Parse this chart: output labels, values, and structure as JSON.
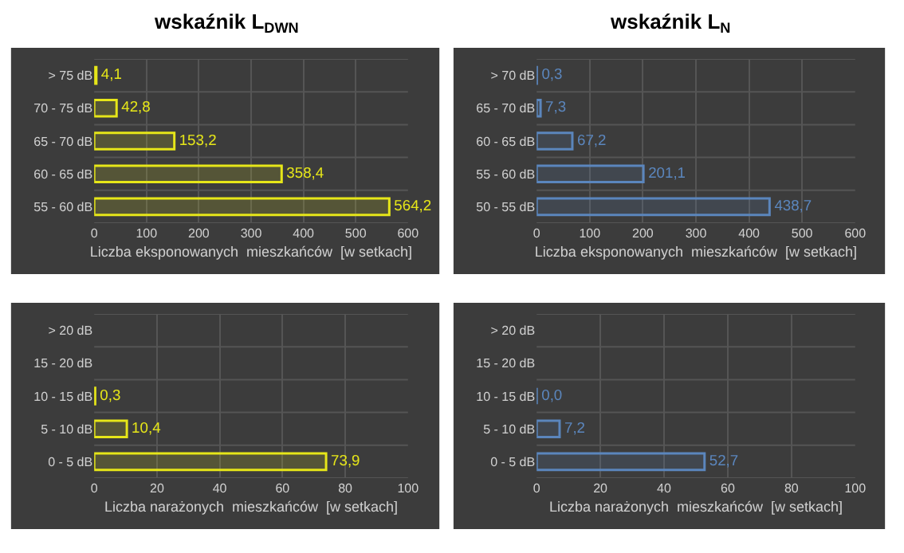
{
  "chart_data": [
    {
      "type": "bar",
      "orientation": "horizontal",
      "title": "wskaźnik L$_{DWN}$",
      "categories": [
        "> 75 dB",
        "70 - 75 dB",
        "65 - 70 dB",
        "60 - 65 dB",
        "55 - 60 dB"
      ],
      "values": [
        4.1,
        42.8,
        153.2,
        358.4,
        564.2
      ],
      "value_labels": [
        "4,1",
        "42,8",
        "153,2",
        "358,4",
        "564,2"
      ],
      "color": "#e6e619",
      "xlim": [
        0,
        600
      ],
      "xticks": [
        0,
        100,
        200,
        300,
        400,
        500,
        600
      ],
      "xlabel": "Liczba eksponowanych  mieszkańców  [w setkach]",
      "grid": true
    },
    {
      "type": "bar",
      "orientation": "horizontal",
      "title": "wskaźnik L$_{N}$",
      "categories": [
        "> 70 dB",
        "65 - 70 dB",
        "60 - 65 dB",
        "55 - 60 dB",
        "50 - 55 dB"
      ],
      "values": [
        0.3,
        7.3,
        67.2,
        201.1,
        438.7
      ],
      "value_labels": [
        "0,3",
        "7,3",
        "67,2",
        "201,1",
        "438,7"
      ],
      "color": "#5b86bd",
      "xlim": [
        0,
        600
      ],
      "xticks": [
        0,
        100,
        200,
        300,
        400,
        500,
        600
      ],
      "xlabel": "Liczba eksponowanych  mieszkańców  [w setkach]",
      "grid": true
    },
    {
      "type": "bar",
      "orientation": "horizontal",
      "categories": [
        "> 20 dB",
        "15 - 20 dB",
        "10 - 15 dB",
        "5 - 10 dB",
        "0 - 5 dB"
      ],
      "values": [
        null,
        null,
        0.3,
        10.4,
        73.9
      ],
      "value_labels": [
        null,
        null,
        "0,3",
        "10,4",
        "73,9"
      ],
      "color": "#e6e619",
      "xlim": [
        0,
        100
      ],
      "xticks": [
        0,
        20,
        40,
        60,
        80,
        100
      ],
      "xlabel": "Liczba narażonych  mieszkańców  [w setkach]",
      "grid": true
    },
    {
      "type": "bar",
      "orientation": "horizontal",
      "categories": [
        "> 20 dB",
        "15 - 20 dB",
        "10 - 15 dB",
        "5 - 10 dB",
        "0 - 5 dB"
      ],
      "values": [
        null,
        null,
        0.0,
        7.2,
        52.7
      ],
      "value_labels": [
        null,
        null,
        "0,0",
        "7,2",
        "52,7"
      ],
      "color": "#5b86bd",
      "xlim": [
        0,
        100
      ],
      "xticks": [
        0,
        20,
        40,
        60,
        80,
        100
      ],
      "xlabel": "Liczba narażonych  mieszkańców  [w setkach]",
      "grid": true
    }
  ]
}
